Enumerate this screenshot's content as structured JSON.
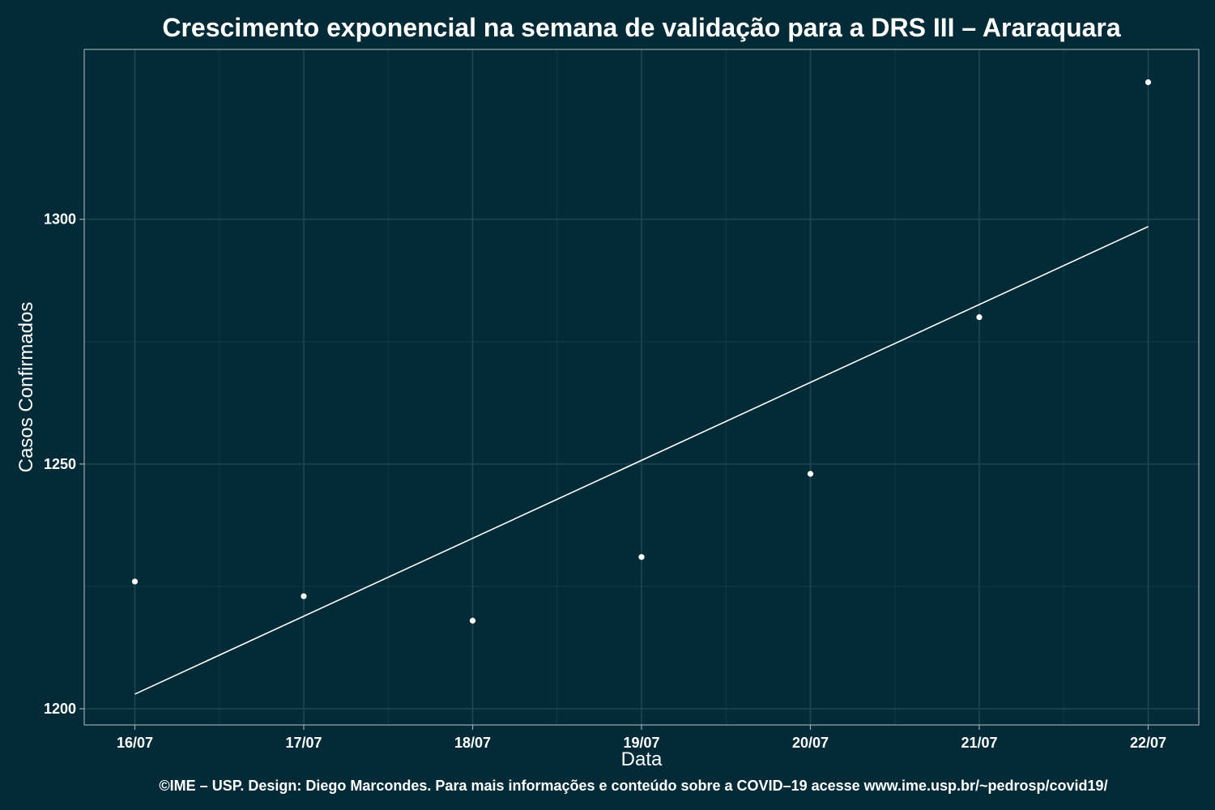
{
  "chart_data": {
    "type": "scatter",
    "title": "Crescimento exponencial na semana de validação para a DRS III – Araraquara",
    "xlabel": "Data",
    "ylabel": "Casos Confirmados",
    "x_tick_labels": [
      "16/07",
      "17/07",
      "18/07",
      "19/07",
      "20/07",
      "21/07",
      "22/07"
    ],
    "y_ticks": [
      1200,
      1250,
      1300
    ],
    "ylim": [
      1196.7,
      1334.7
    ],
    "grid": true,
    "series": [
      {
        "x": [
          "16/07",
          "17/07",
          "18/07",
          "19/07",
          "20/07",
          "21/07",
          "22/07"
        ],
        "values": [
          1226,
          1223,
          1218,
          1231,
          1248,
          1280,
          1328
        ]
      }
    ],
    "fit_line": {
      "x": [
        "16/07",
        "22/07"
      ],
      "values": [
        1203,
        1298.5
      ]
    },
    "caption": "©IME – USP. Design: Diego Marcondes. Para mais informações e conteúdo sobre a COVID–19 acesse www.ime.usp.br/~pedrosp/covid19/",
    "colors": {
      "background": "#022b37",
      "points": "#ffffff",
      "fit_line": "#ffffff",
      "grid": "#1d4652",
      "panel_border": "#9aa9ad"
    }
  }
}
